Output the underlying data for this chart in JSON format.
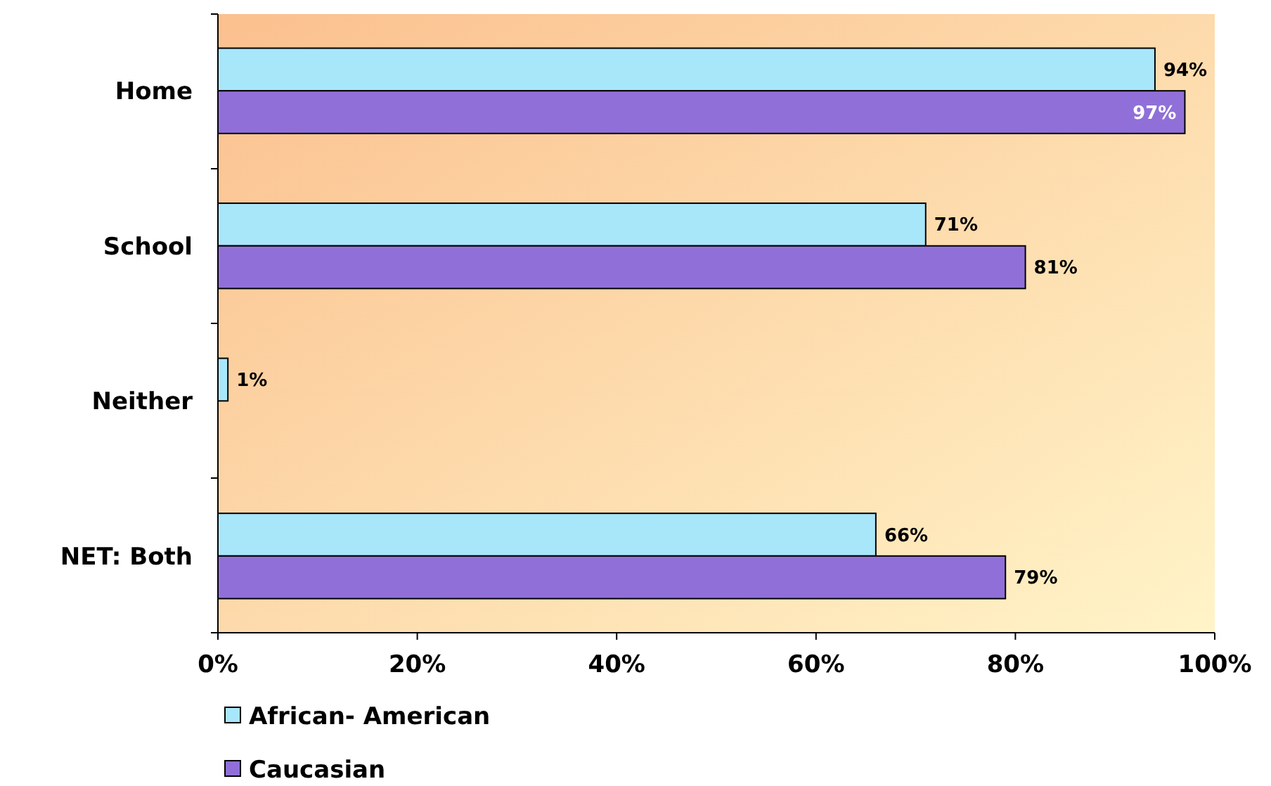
{
  "chart_data": {
    "type": "bar",
    "orientation": "horizontal",
    "categories": [
      "Home",
      "School",
      "Neither",
      "NET: Both"
    ],
    "series": [
      {
        "name": "African- American",
        "color": "#a8e6fa",
        "values": [
          94,
          71,
          1,
          66
        ],
        "value_labels": [
          "94%",
          "71%",
          "1%",
          "66%"
        ]
      },
      {
        "name": "Caucasian",
        "color": "#9070d8",
        "values": [
          97,
          81,
          null,
          79
        ],
        "value_labels": [
          "97%",
          "81%",
          null,
          "79%"
        ]
      }
    ],
    "xlim": [
      0,
      100
    ],
    "xticks": [
      {
        "value": 0,
        "label": "0%"
      },
      {
        "value": 20,
        "label": "20%"
      },
      {
        "value": 40,
        "label": "40%"
      },
      {
        "value": 60,
        "label": "60%"
      },
      {
        "value": 80,
        "label": "80%"
      },
      {
        "value": 100,
        "label": "100%"
      }
    ],
    "grid": false,
    "legend": "bottom"
  }
}
